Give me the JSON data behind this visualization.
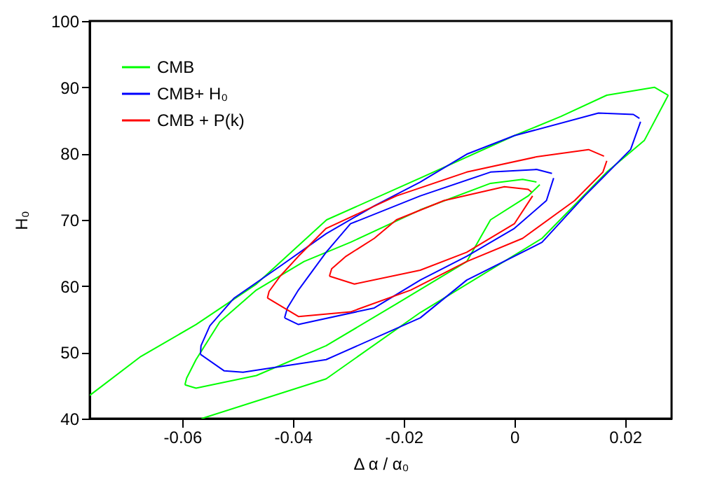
{
  "chart_data": {
    "type": "line",
    "xlabel": "Δ α / α₀",
    "ylabel": "H₀",
    "xlim": [
      -0.0767,
      0.0284
    ],
    "ylim": [
      40,
      100
    ],
    "xticks": [
      -0.06,
      -0.04,
      -0.02,
      0,
      0.02
    ],
    "yticks": [
      40,
      50,
      60,
      70,
      80,
      90,
      100
    ],
    "grid": false,
    "legend": "top left",
    "marker": "none",
    "line_style": "solid",
    "series": [
      {
        "name": "CMB",
        "color": "#00ff00",
        "x": [
          -0.0767,
          -0.0676,
          -0.0575,
          -0.0466,
          -0.0339,
          -0.017,
          0,
          0.0084,
          0.0167,
          0.0253,
          0.0278
        ],
        "values": [
          43.5,
          49.3,
          54.2,
          60.3,
          70,
          76.3,
          82.7,
          85.6,
          88.8,
          90,
          88.8
        ]
      },
      {
        "color": "#00ff00",
        "x": [
          -0.0565,
          -0.034,
          -0.017,
          0.005,
          0.0167,
          0.0235,
          0.0278
        ],
        "values": [
          40,
          46,
          56,
          67.2,
          77.2,
          82,
          88.8
        ]
      },
      {
        "color": "#00ff00",
        "x": [
          -0.0595,
          -0.0592,
          -0.0575,
          -0.0532,
          -0.0466,
          -0.038,
          -0.0296,
          -0.017,
          -0.0043,
          0.0015,
          0.004
        ],
        "values": [
          45.1,
          46.1,
          48.9,
          54.6,
          59.4,
          63.7,
          66.6,
          71.5,
          75.5,
          76.1,
          75.7
        ]
      },
      {
        "color": "#00ff00",
        "x": [
          -0.0595,
          -0.0575,
          -0.0466,
          -0.034,
          -0.0213,
          -0.0086,
          -0.0043,
          0.0025,
          0.0046
        ],
        "values": [
          45.1,
          44.6,
          46.5,
          51,
          57.3,
          63.7,
          70,
          73.6,
          75.3
        ]
      },
      {
        "name": "CMB+ H₀",
        "color": "#0000ff",
        "x": [
          -0.0567,
          -0.0566,
          -0.055,
          -0.0506,
          -0.0423,
          -0.034,
          -0.0253,
          -0.017,
          -0.0086,
          0,
          0.0152,
          0.0215,
          0.0226
        ],
        "values": [
          49.7,
          51,
          54,
          58.2,
          63,
          67.9,
          72.1,
          75.7,
          79.9,
          82.7,
          86.1,
          85.9,
          85.3
        ]
      },
      {
        "color": "#0000ff",
        "x": [
          -0.0567,
          -0.0524,
          -0.049,
          -0.034,
          -0.017,
          -0.0086,
          0.005,
          0.0127,
          0.021,
          0.0228
        ],
        "values": [
          49.7,
          47.2,
          47,
          48.9,
          55.2,
          60.9,
          66.6,
          73.6,
          80.6,
          84.8
        ]
      },
      {
        "color": "#0000ff",
        "x": [
          -0.0415,
          -0.041,
          -0.039,
          -0.034,
          -0.0296,
          -0.017,
          -0.0043,
          0.004,
          0.0068
        ],
        "values": [
          55.2,
          56.7,
          59.4,
          65.1,
          69.4,
          73.6,
          77.2,
          77.6,
          77
        ]
      },
      {
        "color": "#0000ff",
        "x": [
          -0.0415,
          -0.039,
          -0.0253,
          -0.017,
          -0.0086,
          0,
          0.0058,
          0.0071
        ],
        "values": [
          55.2,
          54.2,
          56.7,
          60.9,
          64.5,
          68.7,
          72.9,
          76.3
        ]
      },
      {
        "name": "CMB + P(k)",
        "color": "#ff0000",
        "x": [
          -0.0446,
          -0.0443,
          -0.0423,
          -0.039,
          -0.034,
          -0.0213,
          -0.0086,
          0.004,
          0.0134,
          0.0162
        ],
        "values": [
          58.2,
          59.2,
          61.5,
          64.5,
          68.7,
          73.6,
          77.2,
          79.5,
          80.6,
          79.6
        ]
      },
      {
        "color": "#ff0000",
        "x": [
          -0.0446,
          -0.039,
          -0.0296,
          -0.0187,
          -0.0086,
          0.0015,
          0.0109,
          0.016,
          0.0167
        ],
        "values": [
          58.2,
          55.4,
          56.1,
          59.4,
          63.7,
          67.2,
          72.9,
          77.2,
          78.9
        ]
      },
      {
        "color": "#ff0000",
        "x": [
          -0.0334,
          -0.033,
          -0.0304,
          -0.0253,
          -0.0213,
          -0.0127,
          -0.0018,
          0.0025,
          0.0031
        ],
        "values": [
          61.5,
          62.6,
          64.5,
          67.2,
          70,
          72.9,
          75,
          74.6,
          74.2
        ]
      },
      {
        "color": "#ff0000",
        "x": [
          -0.0334,
          -0.0289,
          -0.017,
          -0.0086,
          0,
          0.0033
        ],
        "values": [
          61.5,
          60.3,
          62.4,
          65.1,
          69.4,
          73.6
        ]
      }
    ]
  }
}
